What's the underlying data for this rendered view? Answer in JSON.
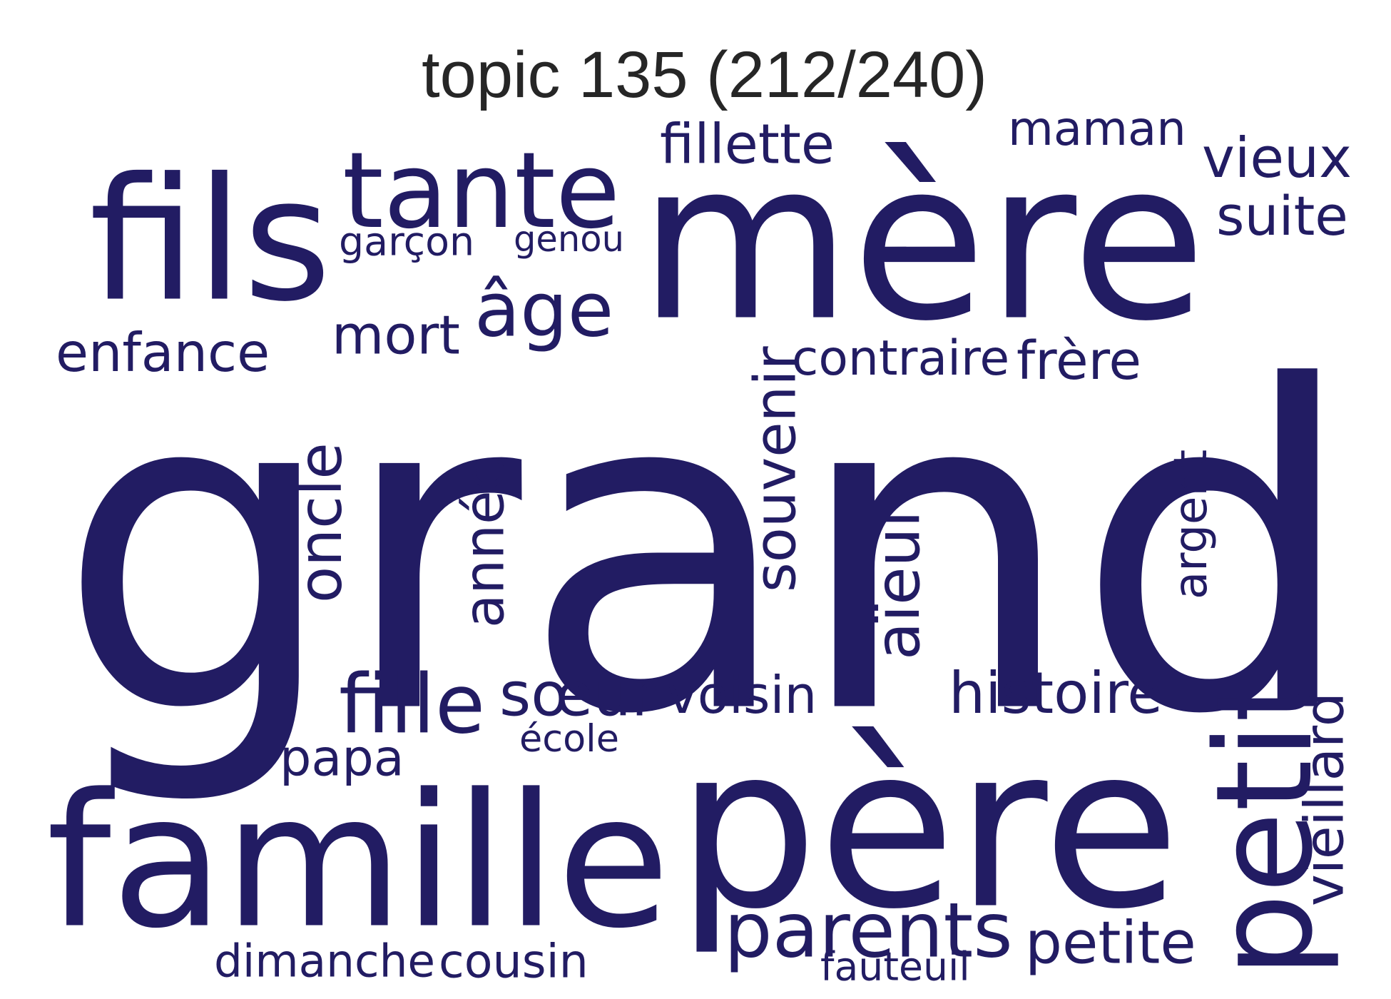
{
  "title": "topic 135 (212/240)",
  "colors": {
    "word": "#221c63",
    "title": "#262626",
    "background": "#ffffff"
  },
  "words": [
    {
      "id": "grand",
      "text": "grand",
      "rotated": false
    },
    {
      "id": "mere",
      "text": "mère",
      "rotated": false
    },
    {
      "id": "pere",
      "text": "père",
      "rotated": false
    },
    {
      "id": "fils",
      "text": "fils",
      "rotated": false
    },
    {
      "id": "famille",
      "text": "famille",
      "rotated": false
    },
    {
      "id": "tante",
      "text": "tante",
      "rotated": false
    },
    {
      "id": "petit",
      "text": "petit",
      "rotated": true
    },
    {
      "id": "parents",
      "text": "parents",
      "rotated": false
    },
    {
      "id": "fille",
      "text": "fille",
      "rotated": false
    },
    {
      "id": "age",
      "text": "âge",
      "rotated": false
    },
    {
      "id": "fillette",
      "text": "fillette",
      "rotated": false
    },
    {
      "id": "vieux",
      "text": "vieux",
      "rotated": false
    },
    {
      "id": "suite",
      "text": "suite",
      "rotated": false
    },
    {
      "id": "maman",
      "text": "maman",
      "rotated": false
    },
    {
      "id": "enfance",
      "text": "enfance",
      "rotated": false
    },
    {
      "id": "mort",
      "text": "mort",
      "rotated": false
    },
    {
      "id": "contraire",
      "text": "contraire",
      "rotated": false
    },
    {
      "id": "frere",
      "text": "frère",
      "rotated": false
    },
    {
      "id": "histoire",
      "text": "histoire",
      "rotated": false
    },
    {
      "id": "soeur",
      "text": "sœur",
      "rotated": false
    },
    {
      "id": "voisin",
      "text": "voisin",
      "rotated": false
    },
    {
      "id": "petite",
      "text": "petite",
      "rotated": false
    },
    {
      "id": "papa",
      "text": "papa",
      "rotated": false
    },
    {
      "id": "ecole",
      "text": "école",
      "rotated": false
    },
    {
      "id": "garcon",
      "text": "garçon",
      "rotated": false
    },
    {
      "id": "genou",
      "text": "genou",
      "rotated": false
    },
    {
      "id": "dimanche",
      "text": "dimanche",
      "rotated": false
    },
    {
      "id": "cousin",
      "text": "cousin",
      "rotated": false
    },
    {
      "id": "fauteuil",
      "text": "fauteuil",
      "rotated": false
    },
    {
      "id": "oncle",
      "text": "oncle",
      "rotated": true
    },
    {
      "id": "annee",
      "text": "année",
      "rotated": true
    },
    {
      "id": "souvenir",
      "text": "souvenir",
      "rotated": true
    },
    {
      "id": "aieul",
      "text": "aïeul",
      "rotated": true
    },
    {
      "id": "argent",
      "text": "argent",
      "rotated": true
    },
    {
      "id": "vieillard",
      "text": "vieillard",
      "rotated": true
    }
  ]
}
